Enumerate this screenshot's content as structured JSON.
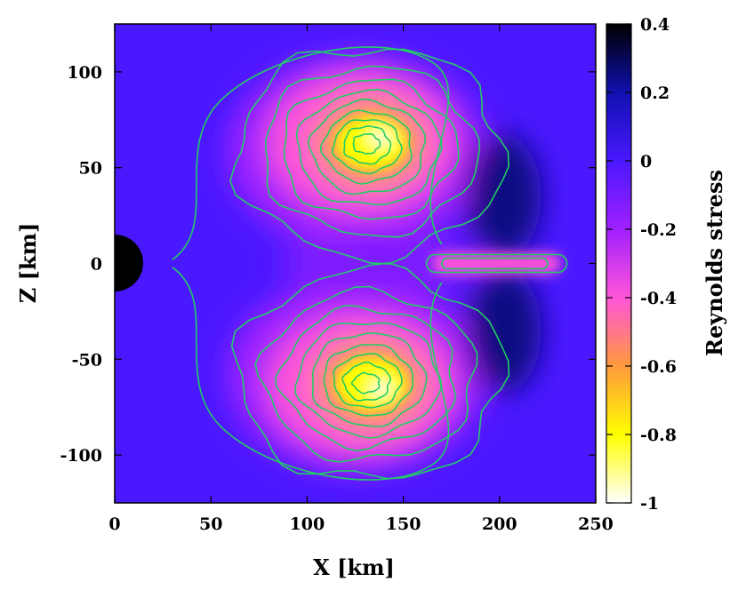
{
  "chart_data": {
    "type": "heatmap",
    "title": "",
    "xlabel": "X [km]",
    "ylabel": "Z [km]",
    "xlim": [
      0,
      250
    ],
    "ylim": [
      -125,
      125
    ],
    "x_ticks": [
      "0",
      "50",
      "100",
      "150",
      "200",
      "250"
    ],
    "y_ticks": [
      "100",
      "50",
      "0",
      "-50",
      "-100"
    ],
    "colorbar": {
      "label": "Reynolds stress",
      "range": [
        -1,
        0.4
      ],
      "ticks": [
        "0.4",
        "0.2",
        "0",
        "-0.2",
        "-0.4",
        "-0.6",
        "-0.8",
        "-1"
      ],
      "colors": [
        "#ffffff",
        "#ffff00",
        "#ff9a3c",
        "#ff55d8",
        "#a020ff",
        "#4a18ff",
        "#1010b0",
        "#000000"
      ]
    },
    "background_value": -0.1,
    "features": [
      {
        "name": "upper lobe",
        "center": [
          128,
          63
        ],
        "min_value": -1.0
      },
      {
        "name": "lower lobe",
        "center": [
          128,
          -63
        ],
        "min_value": -1.0
      },
      {
        "name": "equatorial jet",
        "center": [
          200,
          0
        ],
        "min_value": -0.4
      },
      {
        "name": "positive region upper",
        "center": [
          200,
          35
        ],
        "max_value": 0.25
      },
      {
        "name": "positive region lower",
        "center": [
          200,
          -35
        ],
        "max_value": 0.25
      },
      {
        "name": "central object",
        "center": [
          0,
          0
        ],
        "radius": 15
      }
    ],
    "contour_color": "#22cc66",
    "grid": false
  }
}
